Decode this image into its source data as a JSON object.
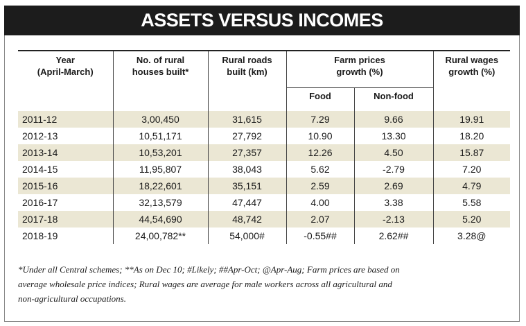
{
  "title": "ASSETS VERSUS INCOMES",
  "headers": {
    "year": [
      "Year",
      "(April-March)"
    ],
    "houses": [
      "No. of rural",
      "houses built*"
    ],
    "roads": [
      "Rural roads",
      "built (km)"
    ],
    "farm": [
      "Farm prices",
      "growth (%)"
    ],
    "food": "Food",
    "nonfood": "Non-food",
    "wages": [
      "Rural wages",
      "growth (%)"
    ]
  },
  "rows": [
    {
      "year": "2011-12",
      "houses": "3,00,450",
      "roads": "31,615",
      "food": "7.29",
      "nonfood": "9.66",
      "wages": "19.91"
    },
    {
      "year": "2012-13",
      "houses": "10,51,171",
      "roads": "27,792",
      "food": "10.90",
      "nonfood": "13.30",
      "wages": "18.20"
    },
    {
      "year": "2013-14",
      "houses": "10,53,201",
      "roads": "27,357",
      "food": "12.26",
      "nonfood": "4.50",
      "wages": "15.87"
    },
    {
      "year": "2014-15",
      "houses": "11,95,807",
      "roads": "38,043",
      "food": "5.62",
      "nonfood": "-2.79",
      "wages": "7.20"
    },
    {
      "year": "2015-16",
      "houses": "18,22,601",
      "roads": "35,151",
      "food": "2.59",
      "nonfood": "2.69",
      "wages": "4.79"
    },
    {
      "year": "2016-17",
      "houses": "32,13,579",
      "roads": "47,447",
      "food": "4.00",
      "nonfood": "3.38",
      "wages": "5.58"
    },
    {
      "year": "2017-18",
      "houses": "44,54,690",
      "roads": "48,742",
      "food": "2.07",
      "nonfood": "-2.13",
      "wages": "5.20"
    },
    {
      "year": "2018-19",
      "houses": "24,00,782**",
      "roads": "54,000#",
      "food": "-0.55##",
      "nonfood": "2.62##",
      "wages": "3.28@"
    }
  ],
  "footnote": [
    "*Under all Central schemes; **As on Dec 10; #Likely; ##Apr-Oct; @Apr-Aug; Farm prices are based on",
    "average wholesale price indices; Rural wages are average for male workers across all agricultural and",
    "non-agricultural occupations."
  ],
  "colors": {
    "banner": "#1c1c1c",
    "row_shade": "#ebe7d4"
  }
}
